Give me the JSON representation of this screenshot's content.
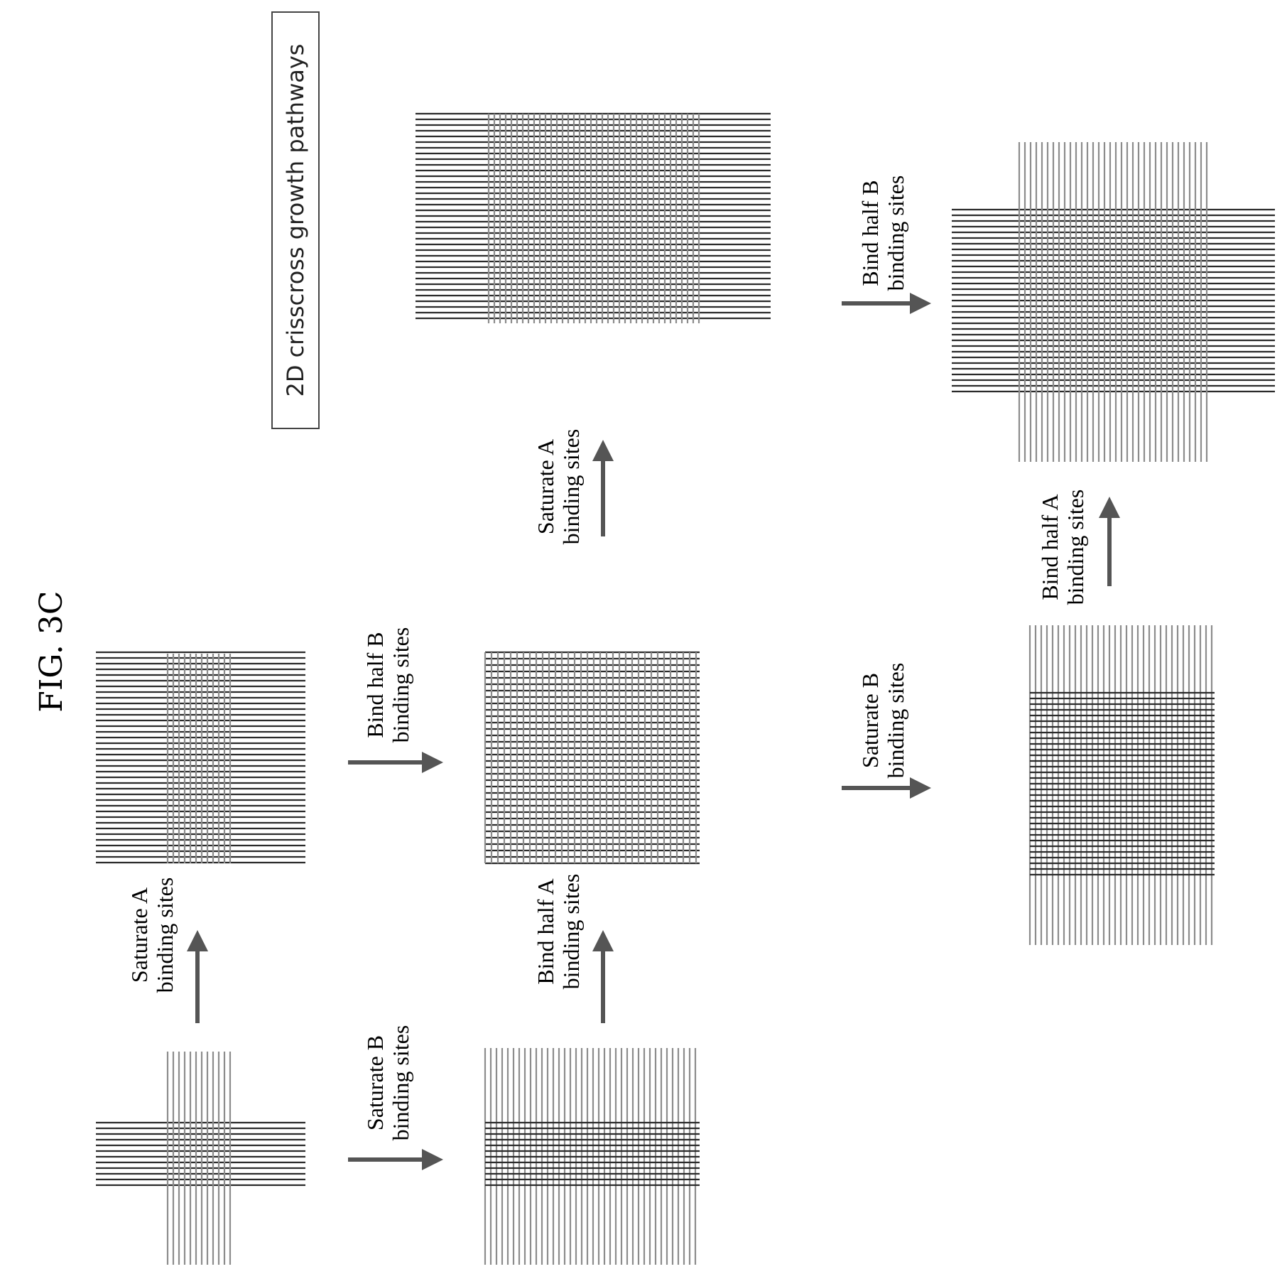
{
  "figure": {
    "label": "FIG. 3C",
    "title": "2D crisscross growth pathways"
  },
  "steps": {
    "saturate_a_1": {
      "line1": "Saturate A",
      "line2": "binding sites"
    },
    "saturate_b_1": {
      "line1": "Saturate B",
      "line2": "binding sites"
    },
    "bind_half_b_1": {
      "line1": "Bind half B",
      "line2": "binding sites"
    },
    "bind_half_a_1": {
      "line1": "Bind half A",
      "line2": "binding sites"
    },
    "saturate_a_2": {
      "line1": "Saturate A",
      "line2": "binding sites"
    },
    "saturate_b_2": {
      "line1": "Saturate B",
      "line2": "binding sites"
    },
    "bind_half_b_2": {
      "line1": "Bind half B",
      "line2": "binding sites"
    },
    "bind_half_a_2": {
      "line1": "Bind half A",
      "line2": "binding sites"
    }
  },
  "colors": {
    "dark_strand": "#2a2a2a",
    "light_strand": "#8c8c8c",
    "arrow": "#555555"
  }
}
